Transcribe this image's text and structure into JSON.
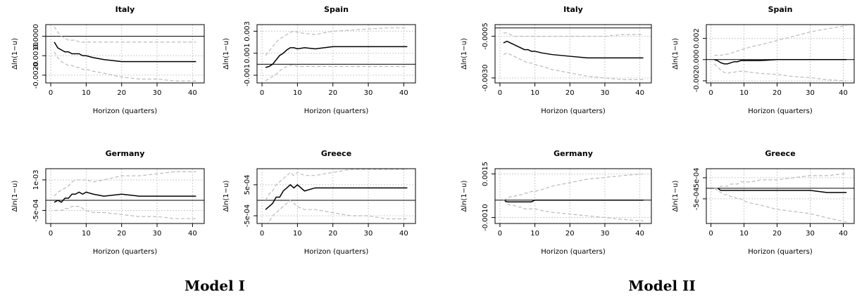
{
  "chart_data": [
    {
      "type": "line",
      "title": "Italy",
      "ylabel": "Δln(1−u)",
      "xlabel": "Horizon (quarters)",
      "x": [
        1,
        2,
        3,
        4,
        5,
        6,
        7,
        8,
        9,
        10,
        12,
        15,
        20,
        25,
        30,
        35,
        41
      ],
      "xlim": [
        -1.4,
        43.3
      ],
      "xticks": [
        0,
        10,
        20,
        30,
        40
      ],
      "ylim": [
        -0.0024,
        0.0006
      ],
      "yticks": [
        {
          "value": 0,
          "label": "0.0000"
        },
        {
          "value": -0.001,
          "label": "-0.0010"
        },
        {
          "value": -0.002,
          "label": "-0.0020"
        }
      ],
      "hline": 0,
      "grid": true,
      "series": [
        {
          "color": "#000000",
          "style": "solid",
          "values": [
            -0.0003,
            -0.0006,
            -0.0007,
            -0.0008,
            -0.0008,
            -0.0009,
            -0.0009,
            -0.0009,
            -0.001,
            -0.001,
            -0.0011,
            -0.0012,
            -0.0013,
            -0.0013,
            -0.0013,
            -0.0013,
            -0.0013
          ]
        },
        {
          "color": "#bbbbbb",
          "style": "dashed",
          "values": [
            0.0005,
            0.0002,
            0.0,
            -0.0001,
            -0.0002,
            -0.0002,
            -0.0002,
            -0.0003,
            -0.0003,
            -0.0003,
            -0.0003,
            -0.0003,
            -0.0003,
            -0.0003,
            -0.0003,
            -0.0003,
            -0.0003
          ]
        },
        {
          "color": "#bbbbbb",
          "style": "dashed",
          "values": [
            -0.0008,
            -0.0011,
            -0.0013,
            -0.0014,
            -0.0015,
            -0.0015,
            -0.0016,
            -0.0016,
            -0.0017,
            -0.0017,
            -0.0018,
            -0.0019,
            -0.0021,
            -0.0022,
            -0.0022,
            -0.0023,
            -0.0023
          ]
        }
      ]
    },
    {
      "type": "line",
      "title": "Spain",
      "ylabel": "Δln(1−u)",
      "xlabel": "Horizon (quarters)",
      "x": [
        1,
        2,
        3,
        4,
        5,
        6,
        7,
        8,
        9,
        10,
        12,
        15,
        20,
        25,
        30,
        35,
        41
      ],
      "xlim": [
        -1.4,
        43.3
      ],
      "xticks": [
        0,
        10,
        20,
        30,
        40
      ],
      "ylim": [
        -0.0017,
        0.0036
      ],
      "yticks": [
        -0.001,
        0.001,
        0.003
      ],
      "hline": 0,
      "grid": true,
      "series": [
        {
          "color": "#000000",
          "style": "solid",
          "values": [
            -0.0003,
            -0.0002,
            0.0,
            0.0004,
            0.0008,
            0.001,
            0.0013,
            0.0015,
            0.0015,
            0.0014,
            0.0015,
            0.0014,
            0.0016,
            0.0016,
            0.0016,
            0.0016,
            0.0016
          ]
        },
        {
          "color": "#bbbbbb",
          "style": "dashed",
          "values": [
            0.0008,
            0.0012,
            0.0016,
            0.002,
            0.0023,
            0.0025,
            0.0027,
            0.0029,
            0.003,
            0.0029,
            0.0028,
            0.0027,
            0.003,
            0.0031,
            0.0032,
            0.0033,
            0.0033
          ]
        },
        {
          "color": "#bbbbbb",
          "style": "dashed",
          "values": [
            -0.0015,
            -0.0013,
            -0.0011,
            -0.0009,
            -0.0006,
            -0.0004,
            -0.0002,
            -0.0001,
            -0.0001,
            -0.0002,
            -0.0002,
            -0.0002,
            -0.0002,
            -0.0002,
            -0.0002,
            -0.0002,
            -0.0002
          ]
        }
      ]
    },
    {
      "type": "line",
      "title": "Germany",
      "ylabel": "Δln(1−u)",
      "xlabel": "Horizon (quarters)",
      "x": [
        1,
        2,
        3,
        4,
        5,
        6,
        7,
        8,
        9,
        10,
        12,
        15,
        20,
        25,
        30,
        35,
        41
      ],
      "xlim": [
        -1.4,
        43.3
      ],
      "xticks": [
        0,
        10,
        20,
        30,
        40
      ],
      "ylim": [
        -0.00114,
        0.00155
      ],
      "yticks": [
        {
          "value": -0.0005,
          "label": "-5e-04"
        },
        {
          "value": 0.001,
          "label": "1e-03"
        }
      ],
      "hline": 0,
      "grid": true,
      "series": [
        {
          "color": "#000000",
          "style": "solid",
          "values": [
            -0.0001,
            0.0,
            -0.0001,
            0.0001,
            0.0001,
            0.0003,
            0.0003,
            0.0004,
            0.0003,
            0.0004,
            0.0003,
            0.0002,
            0.0003,
            0.0002,
            0.0002,
            0.0002,
            0.0002
          ]
        },
        {
          "color": "#bbbbbb",
          "style": "dashed",
          "values": [
            0.0002,
            0.0004,
            0.0005,
            0.0006,
            0.0007,
            0.0009,
            0.001,
            0.001,
            0.001,
            0.001,
            0.0009,
            0.001,
            0.0012,
            0.0012,
            0.0013,
            0.0014,
            0.0014
          ]
        },
        {
          "color": "#bbbbbb",
          "style": "dashed",
          "values": [
            -0.0005,
            -0.0005,
            -0.0005,
            -0.0004,
            -0.0004,
            -0.0003,
            -0.0003,
            -0.0003,
            -0.0004,
            -0.0005,
            -0.0006,
            -0.0006,
            -0.0007,
            -0.0008,
            -0.0008,
            -0.0009,
            -0.0009
          ]
        }
      ]
    },
    {
      "type": "line",
      "title": "Greece",
      "ylabel": "Δln(1−u)",
      "xlabel": "Horizon (quarters)",
      "x": [
        1,
        2,
        3,
        4,
        5,
        6,
        7,
        8,
        9,
        10,
        12,
        15,
        20,
        25,
        30,
        35,
        41
      ],
      "xlim": [
        -1.4,
        43.3
      ],
      "xticks": [
        0,
        10,
        20,
        30,
        40
      ],
      "ylim": [
        -0.00075,
        0.00102
      ],
      "yticks": [
        {
          "value": -0.0005,
          "label": "-5e-04"
        },
        {
          "value": 0.0005,
          "label": "5e-04"
        }
      ],
      "hline": 0,
      "grid": true,
      "series": [
        {
          "color": "#000000",
          "style": "solid",
          "values": [
            -0.0003,
            -0.0002,
            -0.0001,
            0.0001,
            0.0001,
            0.0003,
            0.0004,
            0.0005,
            0.0004,
            0.0005,
            0.0003,
            0.0004,
            0.0004,
            0.0004,
            0.0004,
            0.0004,
            0.0004
          ]
        },
        {
          "color": "#bbbbbb",
          "style": "dashed",
          "values": [
            0.0,
            0.0002,
            0.0003,
            0.0005,
            0.0006,
            0.0007,
            0.0008,
            0.0009,
            0.0008,
            0.0009,
            0.0008,
            0.0008,
            0.0009,
            0.001,
            0.001,
            0.001,
            0.001
          ]
        },
        {
          "color": "#bbbbbb",
          "style": "dashed",
          "values": [
            -0.0008,
            -0.0007,
            -0.0005,
            -0.0004,
            -0.0003,
            -0.0002,
            -0.0001,
            0.0,
            -0.0001,
            -0.0002,
            -0.0003,
            -0.0003,
            -0.0004,
            -0.0005,
            -0.0005,
            -0.0006,
            -0.0006
          ]
        }
      ]
    },
    {
      "type": "line",
      "title": "Italy",
      "ylabel": "Δln(1−u)",
      "xlabel": "Horizon (quarters)",
      "x": [
        1,
        2,
        3,
        4,
        5,
        6,
        7,
        8,
        9,
        10,
        12,
        15,
        20,
        25,
        30,
        35,
        41
      ],
      "xlim": [
        -1.4,
        43.3
      ],
      "xticks": [
        0,
        10,
        20,
        30,
        40
      ],
      "ylim": [
        -0.0033,
        0.0002
      ],
      "yticks": [
        {
          "value": -0.0005,
          "label": "-0.0005"
        },
        {
          "value": -0.003,
          "label": "-0.0030"
        }
      ],
      "hline": 0,
      "grid": true,
      "series": [
        {
          "color": "#000000",
          "style": "solid",
          "values": [
            -0.0009,
            -0.0008,
            -0.0009,
            -0.001,
            -0.0011,
            -0.0012,
            -0.0013,
            -0.0013,
            -0.0014,
            -0.0014,
            -0.0015,
            -0.0016,
            -0.0017,
            -0.0018,
            -0.0018,
            -0.0018,
            -0.0018
          ]
        },
        {
          "color": "#bbbbbb",
          "style": "dashed",
          "values": [
            -0.0003,
            -0.0003,
            -0.0004,
            -0.0005,
            -0.0005,
            -0.0005,
            -0.0005,
            -0.0005,
            -0.0005,
            -0.0005,
            -0.0005,
            -0.0005,
            -0.0005,
            -0.0005,
            -0.0005,
            -0.0004,
            -0.0004
          ]
        },
        {
          "color": "#bbbbbb",
          "style": "dashed",
          "values": [
            -0.0016,
            -0.0015,
            -0.0016,
            -0.0017,
            -0.0018,
            -0.0019,
            -0.002,
            -0.0021,
            -0.0021,
            -0.0022,
            -0.0023,
            -0.0025,
            -0.0027,
            -0.0029,
            -0.003,
            -0.0031,
            -0.0031
          ]
        }
      ]
    },
    {
      "type": "line",
      "title": "Spain",
      "ylabel": "Δln(1−u)",
      "xlabel": "Horizon (quarters)",
      "x": [
        1,
        2,
        3,
        4,
        5,
        6,
        7,
        8,
        9,
        10,
        12,
        15,
        20,
        25,
        30,
        35,
        41
      ],
      "xlim": [
        -1.4,
        43.3
      ],
      "xticks": [
        0,
        10,
        20,
        30,
        40
      ],
      "ylim": [
        -0.0022,
        0.0033
      ],
      "yticks": [
        -0.002,
        {
          "value": 0,
          "label": "0.000"
        },
        0.002
      ],
      "hline": 0,
      "grid": true,
      "series": [
        {
          "color": "#000000",
          "style": "solid",
          "values": [
            0.0,
            -0.0001,
            -0.0003,
            -0.0004,
            -0.0004,
            -0.0003,
            -0.0002,
            -0.0002,
            -0.0001,
            -0.0001,
            -0.0001,
            -0.0001,
            0.0,
            0.0,
            0.0,
            0.0,
            0.0
          ]
        },
        {
          "color": "#bbbbbb",
          "style": "dashed",
          "values": [
            0.0004,
            0.0004,
            0.0004,
            0.0005,
            0.0005,
            0.0006,
            0.0007,
            0.0008,
            0.0009,
            0.001,
            0.0012,
            0.0014,
            0.0018,
            0.0022,
            0.0026,
            0.0029,
            0.0032
          ]
        },
        {
          "color": "#bbbbbb",
          "style": "dashed",
          "values": [
            -0.0004,
            -0.0007,
            -0.001,
            -0.0012,
            -0.0013,
            -0.0012,
            -0.0012,
            -0.0011,
            -0.0011,
            -0.0011,
            -0.0012,
            -0.0013,
            -0.0014,
            -0.0016,
            -0.0017,
            -0.0019,
            -0.002
          ]
        }
      ]
    },
    {
      "type": "line",
      "title": "Germany",
      "ylabel": "Δln(1−u)",
      "xlabel": "Horizon (quarters)",
      "x": [
        1,
        2,
        3,
        4,
        5,
        6,
        7,
        8,
        9,
        10,
        12,
        15,
        20,
        25,
        30,
        35,
        41
      ],
      "xlim": [
        -1.4,
        43.3
      ],
      "xticks": [
        0,
        10,
        20,
        30,
        40
      ],
      "ylim": [
        -0.00134,
        0.0018
      ],
      "yticks": [
        {
          "value": -0.001,
          "label": "-0.0010"
        },
        {
          "value": 0.0015,
          "label": "0.0015"
        }
      ],
      "hline": 0,
      "grid": true,
      "series": [
        {
          "color": "#000000",
          "style": "solid",
          "values": [
            0.0,
            -0.0001,
            -0.0001,
            -0.0001,
            -0.0001,
            -0.0001,
            -0.0001,
            -0.0001,
            -0.0001,
            0.0,
            0.0,
            0.0,
            0.0,
            0.0,
            0.0,
            0.0,
            0.0
          ]
        },
        {
          "color": "#bbbbbb",
          "style": "dashed",
          "values": [
            0.0,
            0.0001,
            0.0002,
            0.0002,
            0.0003,
            0.0003,
            0.0004,
            0.0004,
            0.0005,
            0.0005,
            0.0006,
            0.0008,
            0.001,
            0.0012,
            0.0013,
            0.0014,
            0.0015
          ]
        },
        {
          "color": "#bbbbbb",
          "style": "dashed",
          "values": [
            0.0,
            -0.0002,
            -0.0003,
            -0.0003,
            -0.0004,
            -0.0004,
            -0.0005,
            -0.0005,
            -0.0005,
            -0.0005,
            -0.0006,
            -0.0007,
            -0.0008,
            -0.0009,
            -0.001,
            -0.0011,
            -0.0012
          ]
        }
      ]
    },
    {
      "type": "line",
      "title": "Greece",
      "ylabel": "Δln(1−u)",
      "xlabel": "Horizon (quarters)",
      "x": [
        1,
        2,
        3,
        4,
        5,
        6,
        7,
        8,
        9,
        10,
        12,
        15,
        20,
        25,
        30,
        35,
        41
      ],
      "xlim": [
        -1.4,
        43.3
      ],
      "xticks": [
        0,
        10,
        20,
        30,
        40
      ],
      "ylim": [
        -0.00167,
        0.00093
      ],
      "yticks": [
        {
          "value": -0.0005,
          "label": "-5e-04"
        },
        {
          "value": 0.0005,
          "label": "5e-04"
        }
      ],
      "hline": 0,
      "grid": true,
      "series": [
        {
          "color": "#000000",
          "style": "solid",
          "values": [
            0.0,
            0.0,
            -0.0001,
            -0.0001,
            -0.0001,
            -0.0001,
            -0.0001,
            -0.0001,
            -0.0001,
            -0.0001,
            -0.0001,
            -0.0001,
            -0.0001,
            -0.0001,
            -0.0001,
            -0.0002,
            -0.0002
          ]
        },
        {
          "color": "#bbbbbb",
          "style": "dashed",
          "values": [
            0.0,
            0.0,
            0.0001,
            0.0001,
            0.0001,
            0.0002,
            0.0002,
            0.0002,
            0.0003,
            0.0003,
            0.0003,
            0.0004,
            0.0004,
            0.0005,
            0.0006,
            0.0006,
            0.0007
          ]
        },
        {
          "color": "#bbbbbb",
          "style": "dashed",
          "values": [
            0.0,
            -0.0001,
            -0.0002,
            -0.0003,
            -0.0003,
            -0.0004,
            -0.0004,
            -0.0005,
            -0.0005,
            -0.0006,
            -0.0007,
            -0.0008,
            -0.001,
            -0.0011,
            -0.0012,
            -0.0014,
            -0.0016
          ]
        }
      ]
    }
  ],
  "captions": [
    "Model I",
    "Model II"
  ]
}
